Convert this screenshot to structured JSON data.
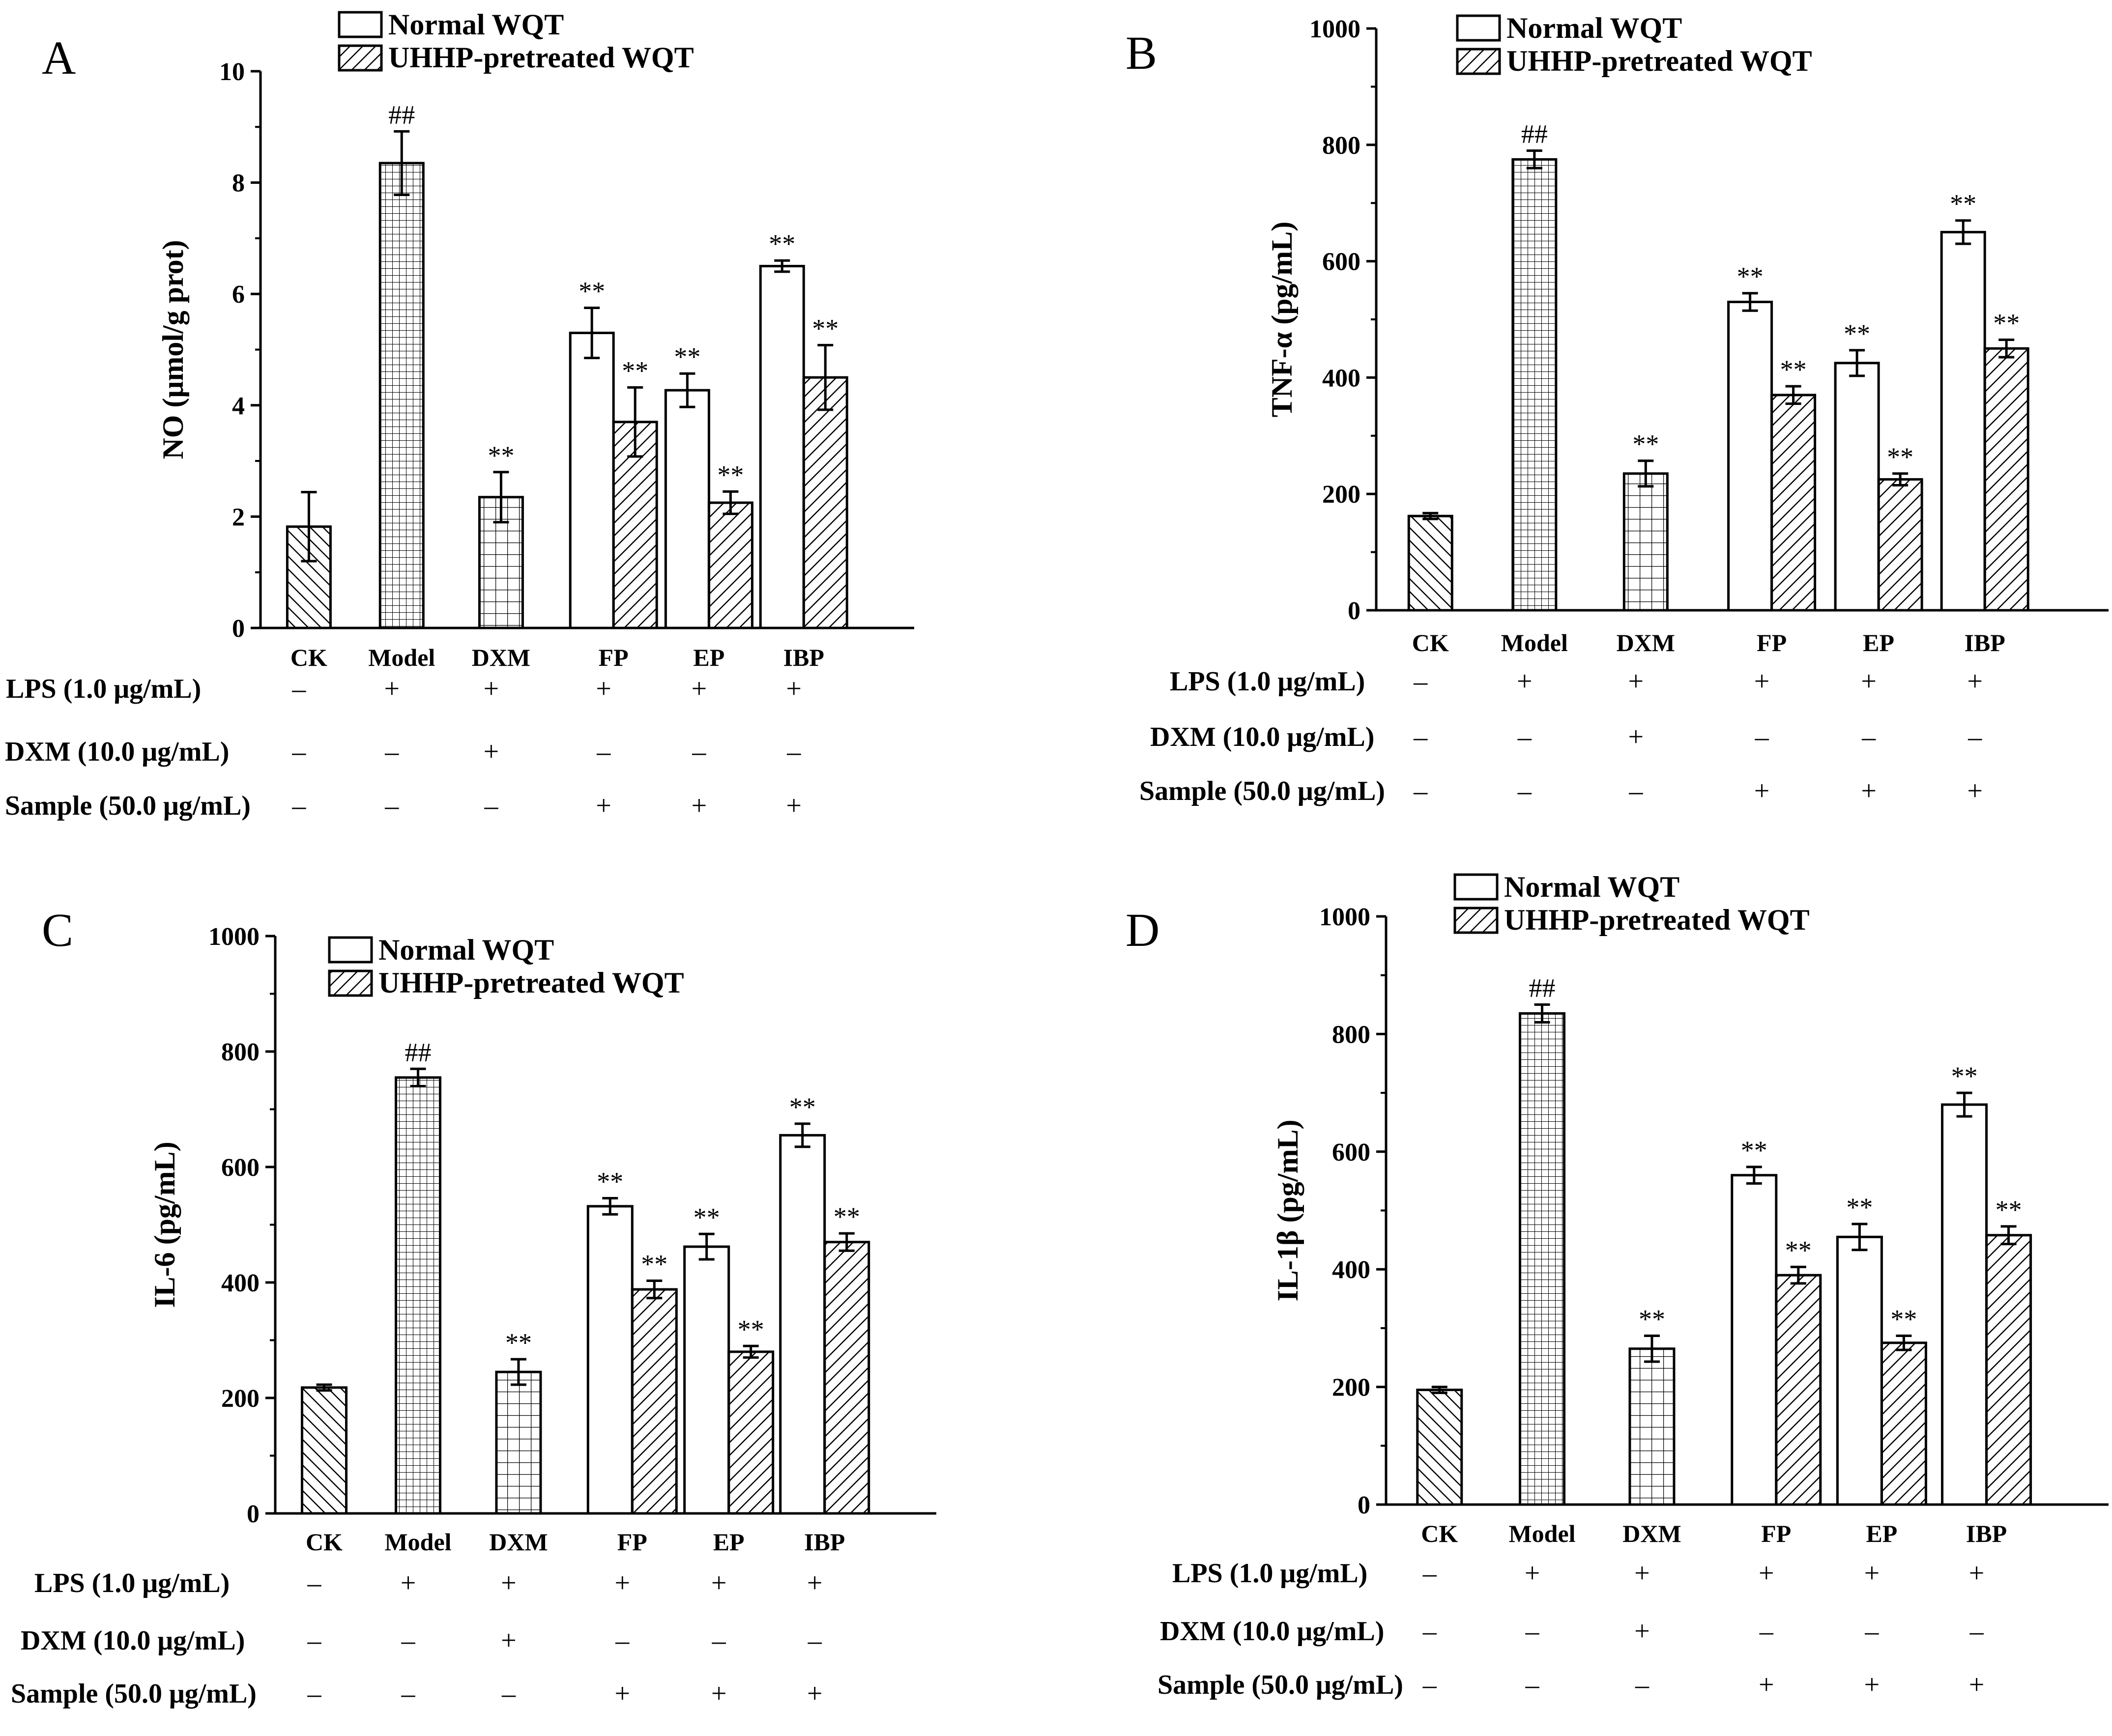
{
  "figure": {
    "categories": [
      "CK",
      "Model",
      "DXM",
      "FP",
      "EP",
      "IBP"
    ],
    "legend": {
      "normal": "Normal WQT",
      "uhhp": "UHHP-pretreated WQT"
    },
    "treatment_rows": [
      {
        "label": "LPS (1.0 μg/mL)",
        "signs": [
          "–",
          "+",
          "+",
          "+",
          "+",
          "+"
        ]
      },
      {
        "label": "DXM (10.0 μg/mL)",
        "signs": [
          "–",
          "–",
          "+",
          "–",
          "–",
          "–"
        ]
      },
      {
        "label": "Sample (50.0 μg/mL)",
        "signs": [
          "–",
          "–",
          "–",
          "+",
          "+",
          "+"
        ]
      }
    ]
  },
  "chart_data": [
    {
      "panel": "A",
      "type": "bar",
      "ylabel": "NO (μmol/g prot)",
      "ylim": [
        0,
        10
      ],
      "yticks": [
        0,
        2,
        4,
        6,
        8,
        10
      ],
      "bars": [
        {
          "category": "CK",
          "series": "control",
          "pattern": "diag-left",
          "value": 1.82,
          "error": 0.62,
          "sig": ""
        },
        {
          "category": "Model",
          "series": "model",
          "pattern": "grid-fine",
          "value": 8.35,
          "error": 0.57,
          "sig": "##"
        },
        {
          "category": "DXM",
          "series": "dxm",
          "pattern": "grid",
          "value": 2.35,
          "error": 0.45,
          "sig": "**"
        },
        {
          "category": "FP",
          "series": "Normal WQT",
          "pattern": "none",
          "value": 5.3,
          "error": 0.45,
          "sig": "**"
        },
        {
          "category": "FP",
          "series": "UHHP-pretreated WQT",
          "pattern": "diag-right",
          "value": 3.7,
          "error": 0.62,
          "sig": "**"
        },
        {
          "category": "EP",
          "series": "Normal WQT",
          "pattern": "none",
          "value": 4.27,
          "error": 0.3,
          "sig": "**"
        },
        {
          "category": "EP",
          "series": "UHHP-pretreated WQT",
          "pattern": "diag-right",
          "value": 2.25,
          "error": 0.2,
          "sig": "**"
        },
        {
          "category": "IBP",
          "series": "Normal WQT",
          "pattern": "none",
          "value": 6.5,
          "error": 0.1,
          "sig": "**"
        },
        {
          "category": "IBP",
          "series": "UHHP-pretreated WQT",
          "pattern": "diag-right",
          "value": 4.5,
          "error": 0.58,
          "sig": "**"
        }
      ]
    },
    {
      "panel": "B",
      "type": "bar",
      "ylabel": "TNF-α (pg/mL)",
      "ylim": [
        0,
        1000
      ],
      "yticks": [
        0,
        200,
        400,
        600,
        800,
        1000
      ],
      "bars": [
        {
          "category": "CK",
          "series": "control",
          "pattern": "diag-left",
          "value": 162,
          "error": 5,
          "sig": ""
        },
        {
          "category": "Model",
          "series": "model",
          "pattern": "grid-fine",
          "value": 775,
          "error": 15,
          "sig": "##"
        },
        {
          "category": "DXM",
          "series": "dxm",
          "pattern": "grid",
          "value": 235,
          "error": 22,
          "sig": "**"
        },
        {
          "category": "FP",
          "series": "Normal WQT",
          "pattern": "none",
          "value": 530,
          "error": 15,
          "sig": "**"
        },
        {
          "category": "FP",
          "series": "UHHP-pretreated WQT",
          "pattern": "diag-right",
          "value": 370,
          "error": 15,
          "sig": "**"
        },
        {
          "category": "EP",
          "series": "Normal WQT",
          "pattern": "none",
          "value": 425,
          "error": 22,
          "sig": "**"
        },
        {
          "category": "EP",
          "series": "UHHP-pretreated WQT",
          "pattern": "diag-right",
          "value": 225,
          "error": 10,
          "sig": "**"
        },
        {
          "category": "IBP",
          "series": "Normal WQT",
          "pattern": "none",
          "value": 650,
          "error": 20,
          "sig": "**"
        },
        {
          "category": "IBP",
          "series": "UHHP-pretreated WQT",
          "pattern": "diag-right",
          "value": 450,
          "error": 15,
          "sig": "**"
        }
      ]
    },
    {
      "panel": "C",
      "type": "bar",
      "ylabel": "IL-6 (pg/mL)",
      "ylim": [
        0,
        1000
      ],
      "yticks": [
        0,
        200,
        400,
        600,
        800,
        1000
      ],
      "bars": [
        {
          "category": "CK",
          "series": "control",
          "pattern": "diag-left",
          "value": 218,
          "error": 5,
          "sig": ""
        },
        {
          "category": "Model",
          "series": "model",
          "pattern": "grid-fine",
          "value": 755,
          "error": 15,
          "sig": "##"
        },
        {
          "category": "DXM",
          "series": "dxm",
          "pattern": "grid",
          "value": 245,
          "error": 22,
          "sig": "**"
        },
        {
          "category": "FP",
          "series": "Normal WQT",
          "pattern": "none",
          "value": 532,
          "error": 14,
          "sig": "**"
        },
        {
          "category": "FP",
          "series": "UHHP-pretreated WQT",
          "pattern": "diag-right",
          "value": 388,
          "error": 15,
          "sig": "**"
        },
        {
          "category": "EP",
          "series": "Normal WQT",
          "pattern": "none",
          "value": 462,
          "error": 22,
          "sig": "**"
        },
        {
          "category": "EP",
          "series": "UHHP-pretreated WQT",
          "pattern": "diag-right",
          "value": 280,
          "error": 10,
          "sig": "**"
        },
        {
          "category": "IBP",
          "series": "Normal WQT",
          "pattern": "none",
          "value": 655,
          "error": 20,
          "sig": "**"
        },
        {
          "category": "IBP",
          "series": "UHHP-pretreated WQT",
          "pattern": "diag-right",
          "value": 470,
          "error": 15,
          "sig": "**"
        }
      ]
    },
    {
      "panel": "D",
      "type": "bar",
      "ylabel": "IL-1β (pg/mL)",
      "ylim": [
        0,
        1000
      ],
      "yticks": [
        0,
        200,
        400,
        600,
        800,
        1000
      ],
      "bars": [
        {
          "category": "CK",
          "series": "control",
          "pattern": "diag-left",
          "value": 195,
          "error": 5,
          "sig": ""
        },
        {
          "category": "Model",
          "series": "model",
          "pattern": "grid-fine",
          "value": 835,
          "error": 15,
          "sig": "##"
        },
        {
          "category": "DXM",
          "series": "dxm",
          "pattern": "grid",
          "value": 265,
          "error": 22,
          "sig": "**"
        },
        {
          "category": "FP",
          "series": "Normal WQT",
          "pattern": "none",
          "value": 560,
          "error": 14,
          "sig": "**"
        },
        {
          "category": "FP",
          "series": "UHHP-pretreated WQT",
          "pattern": "diag-right",
          "value": 390,
          "error": 14,
          "sig": "**"
        },
        {
          "category": "EP",
          "series": "Normal WQT",
          "pattern": "none",
          "value": 455,
          "error": 22,
          "sig": "**"
        },
        {
          "category": "EP",
          "series": "UHHP-pretreated WQT",
          "pattern": "diag-right",
          "value": 275,
          "error": 12,
          "sig": "**"
        },
        {
          "category": "IBP",
          "series": "Normal WQT",
          "pattern": "none",
          "value": 680,
          "error": 20,
          "sig": "**"
        },
        {
          "category": "IBP",
          "series": "UHHP-pretreated WQT",
          "pattern": "diag-right",
          "value": 458,
          "error": 15,
          "sig": "**"
        }
      ]
    }
  ]
}
